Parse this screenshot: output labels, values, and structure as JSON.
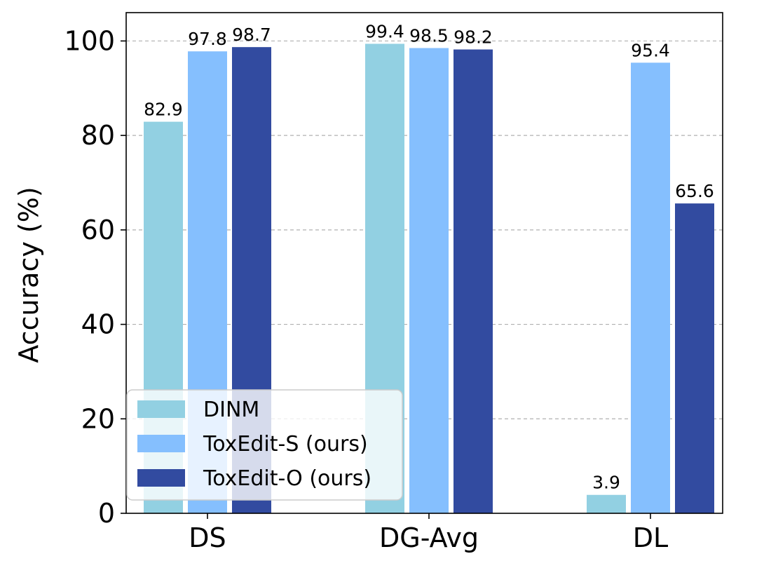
{
  "chart_data": {
    "type": "bar",
    "categories": [
      "DS",
      "DG-Avg",
      "DL"
    ],
    "series": [
      {
        "name": "DINM",
        "values": [
          82.9,
          99.4,
          3.9
        ],
        "labels": [
          "82.9",
          "99.4",
          "3.9"
        ],
        "color": "#92d0e2"
      },
      {
        "name": "ToxEdit-S (ours)",
        "values": [
          97.8,
          98.5,
          95.4
        ],
        "labels": [
          "97.8",
          "98.5",
          "95.4"
        ],
        "color": "#85bffe"
      },
      {
        "name": "ToxEdit-O (ours)",
        "values": [
          98.7,
          98.2,
          65.6
        ],
        "labels": [
          "98.7",
          "98.2",
          "65.6"
        ],
        "color": "#324ba0"
      }
    ],
    "ylabel": "Accuracy (%)",
    "xlabel": "",
    "ylim": [
      0,
      106
    ],
    "yticks": [
      0,
      20,
      40,
      60,
      80,
      100
    ],
    "ytick_labels": [
      "0",
      "20",
      "40",
      "60",
      "80",
      "100"
    ],
    "grid": "y-dashed",
    "legend": "lower-left"
  }
}
